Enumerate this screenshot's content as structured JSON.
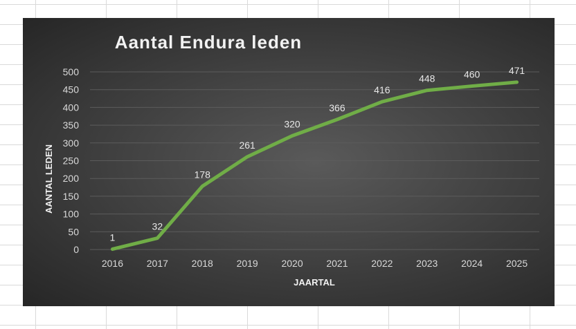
{
  "chart_data": {
    "type": "line",
    "title": "Aantal Endura leden",
    "xlabel": "JAARTAL",
    "ylabel": "AANTAL LEDEN",
    "categories": [
      "2016",
      "2017",
      "2018",
      "2019",
      "2020",
      "2021",
      "2022",
      "2023",
      "2024",
      "2025"
    ],
    "values": [
      1,
      32,
      178,
      261,
      320,
      366,
      416,
      448,
      460,
      471
    ],
    "data_labels": [
      "1",
      "32",
      "178",
      "261",
      "320",
      "366",
      "416",
      "448",
      "460",
      "471"
    ],
    "y_ticks": [
      "0",
      "50",
      "100",
      "150",
      "200",
      "250",
      "300",
      "350",
      "400",
      "450",
      "500"
    ],
    "ylim": [
      0,
      500
    ],
    "grid": true,
    "legend": "none",
    "colors": {
      "line": "#70ad47",
      "background": "#3d3d3d",
      "text": "#d9d9d9"
    }
  }
}
